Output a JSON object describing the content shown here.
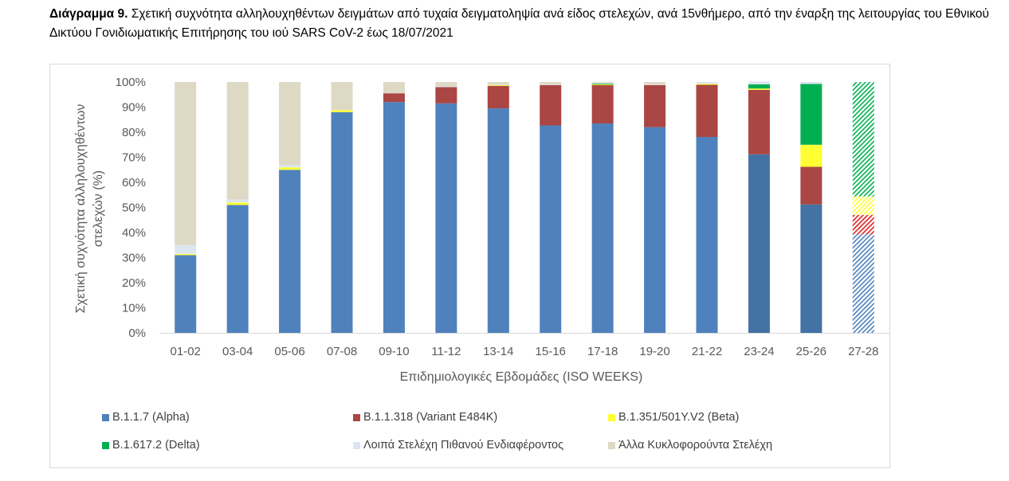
{
  "title": {
    "bold": "Διάγραμμα 9.",
    "text": " Σχετική συχνότητα αλληλουχηθέντων δειγμάτων από τυχαία δειγματοληψία ανά είδος στελεχών, ανά 15νθήμερο, από την έναρξη της λειτουργίας του Εθνικού Δικτύου Γονιδιωματικής Επιτήρησης του ιού SARS CoV-2 έως 18/07/2021"
  },
  "chart_data": {
    "type": "bar",
    "stacked": true,
    "normalized": true,
    "title": "Διάγραμμα 9. Σχετική συχνότητα αλληλουχηθέντων δειγμάτων από τυχαία δειγματοληψία ανά είδος στελεχών, ανά 15νθήμερο, από την έναρξη της λειτουργίας του Εθνικού Δικτύου Γονιδιωματικής Επιτήρησης του ιού SARS CoV-2 έως 18/07/2021",
    "xlabel": "Επιδημιολογικές Εβδομάδες (ISO WEEKS)",
    "ylabel_lines": [
      "Σχετική συχνότητα αλληλουχηθέντων",
      "στελεχών (%)"
    ],
    "ylim": [
      0,
      100
    ],
    "yticks": [
      "0%",
      "10%",
      "20%",
      "30%",
      "40%",
      "50%",
      "60%",
      "70%",
      "80%",
      "90%",
      "100%"
    ],
    "grid": false,
    "legend_position": "bottom",
    "categories": [
      "01-02",
      "03-04",
      "05-06",
      "07-08",
      "09-10",
      "11-12",
      "13-14",
      "15-16",
      "17-18",
      "19-20",
      "21-22",
      "23-24",
      "25-26",
      "27-28"
    ],
    "series": [
      {
        "name": "B.1.1.7 (Alpha)",
        "color": "#4F81BD",
        "values": [
          31,
          51,
          65,
          88,
          92,
          91.5,
          89.5,
          82.7,
          83.5,
          82,
          78.1,
          71.2,
          51.2,
          39.3
        ]
      },
      {
        "name": "B.1.1.318 (Variant E484K)",
        "color": "#AA4643",
        "values": [
          0,
          0,
          0,
          0,
          3.5,
          6.5,
          9,
          16.1,
          15.3,
          16.8,
          20.8,
          25.7,
          15,
          7.7
        ]
      },
      {
        "name": "B.1.351/501Y.V2 (Beta)",
        "color": "#FFFF33",
        "values": [
          0.5,
          1,
          1,
          0.8,
          0,
          0,
          0.3,
          0,
          0.3,
          0,
          0.4,
          0.5,
          8.8,
          7.4
        ]
      },
      {
        "name": "B.1.617.2 (Delta)",
        "color": "#00B050",
        "values": [
          0,
          0,
          0,
          0,
          0,
          0,
          0,
          0,
          0.3,
          0,
          0,
          1.7,
          24.2,
          45.6
        ]
      },
      {
        "name": "Λοιπά Στελέχη Πιθανού Ενδιαφέροντος",
        "color": "#DCE6F2",
        "values": [
          3.5,
          1.2,
          1,
          0,
          0,
          0.3,
          0.2,
          0.2,
          0.2,
          0.2,
          0.7,
          1.1,
          0.8,
          0
        ]
      },
      {
        "name": "Άλλα Κυκλοφορούντα Στελέχη",
        "color": "#DDD9C4",
        "values": [
          65,
          46.8,
          33,
          11.2,
          4.5,
          1.7,
          1,
          1,
          0.4,
          1,
          0,
          0,
          0,
          0
        ]
      }
    ],
    "darker_alpha_categories": [
      "23-24",
      "25-26"
    ],
    "darker_alpha_color": "#4472A4",
    "hatched_categories": [
      "27-28"
    ]
  }
}
